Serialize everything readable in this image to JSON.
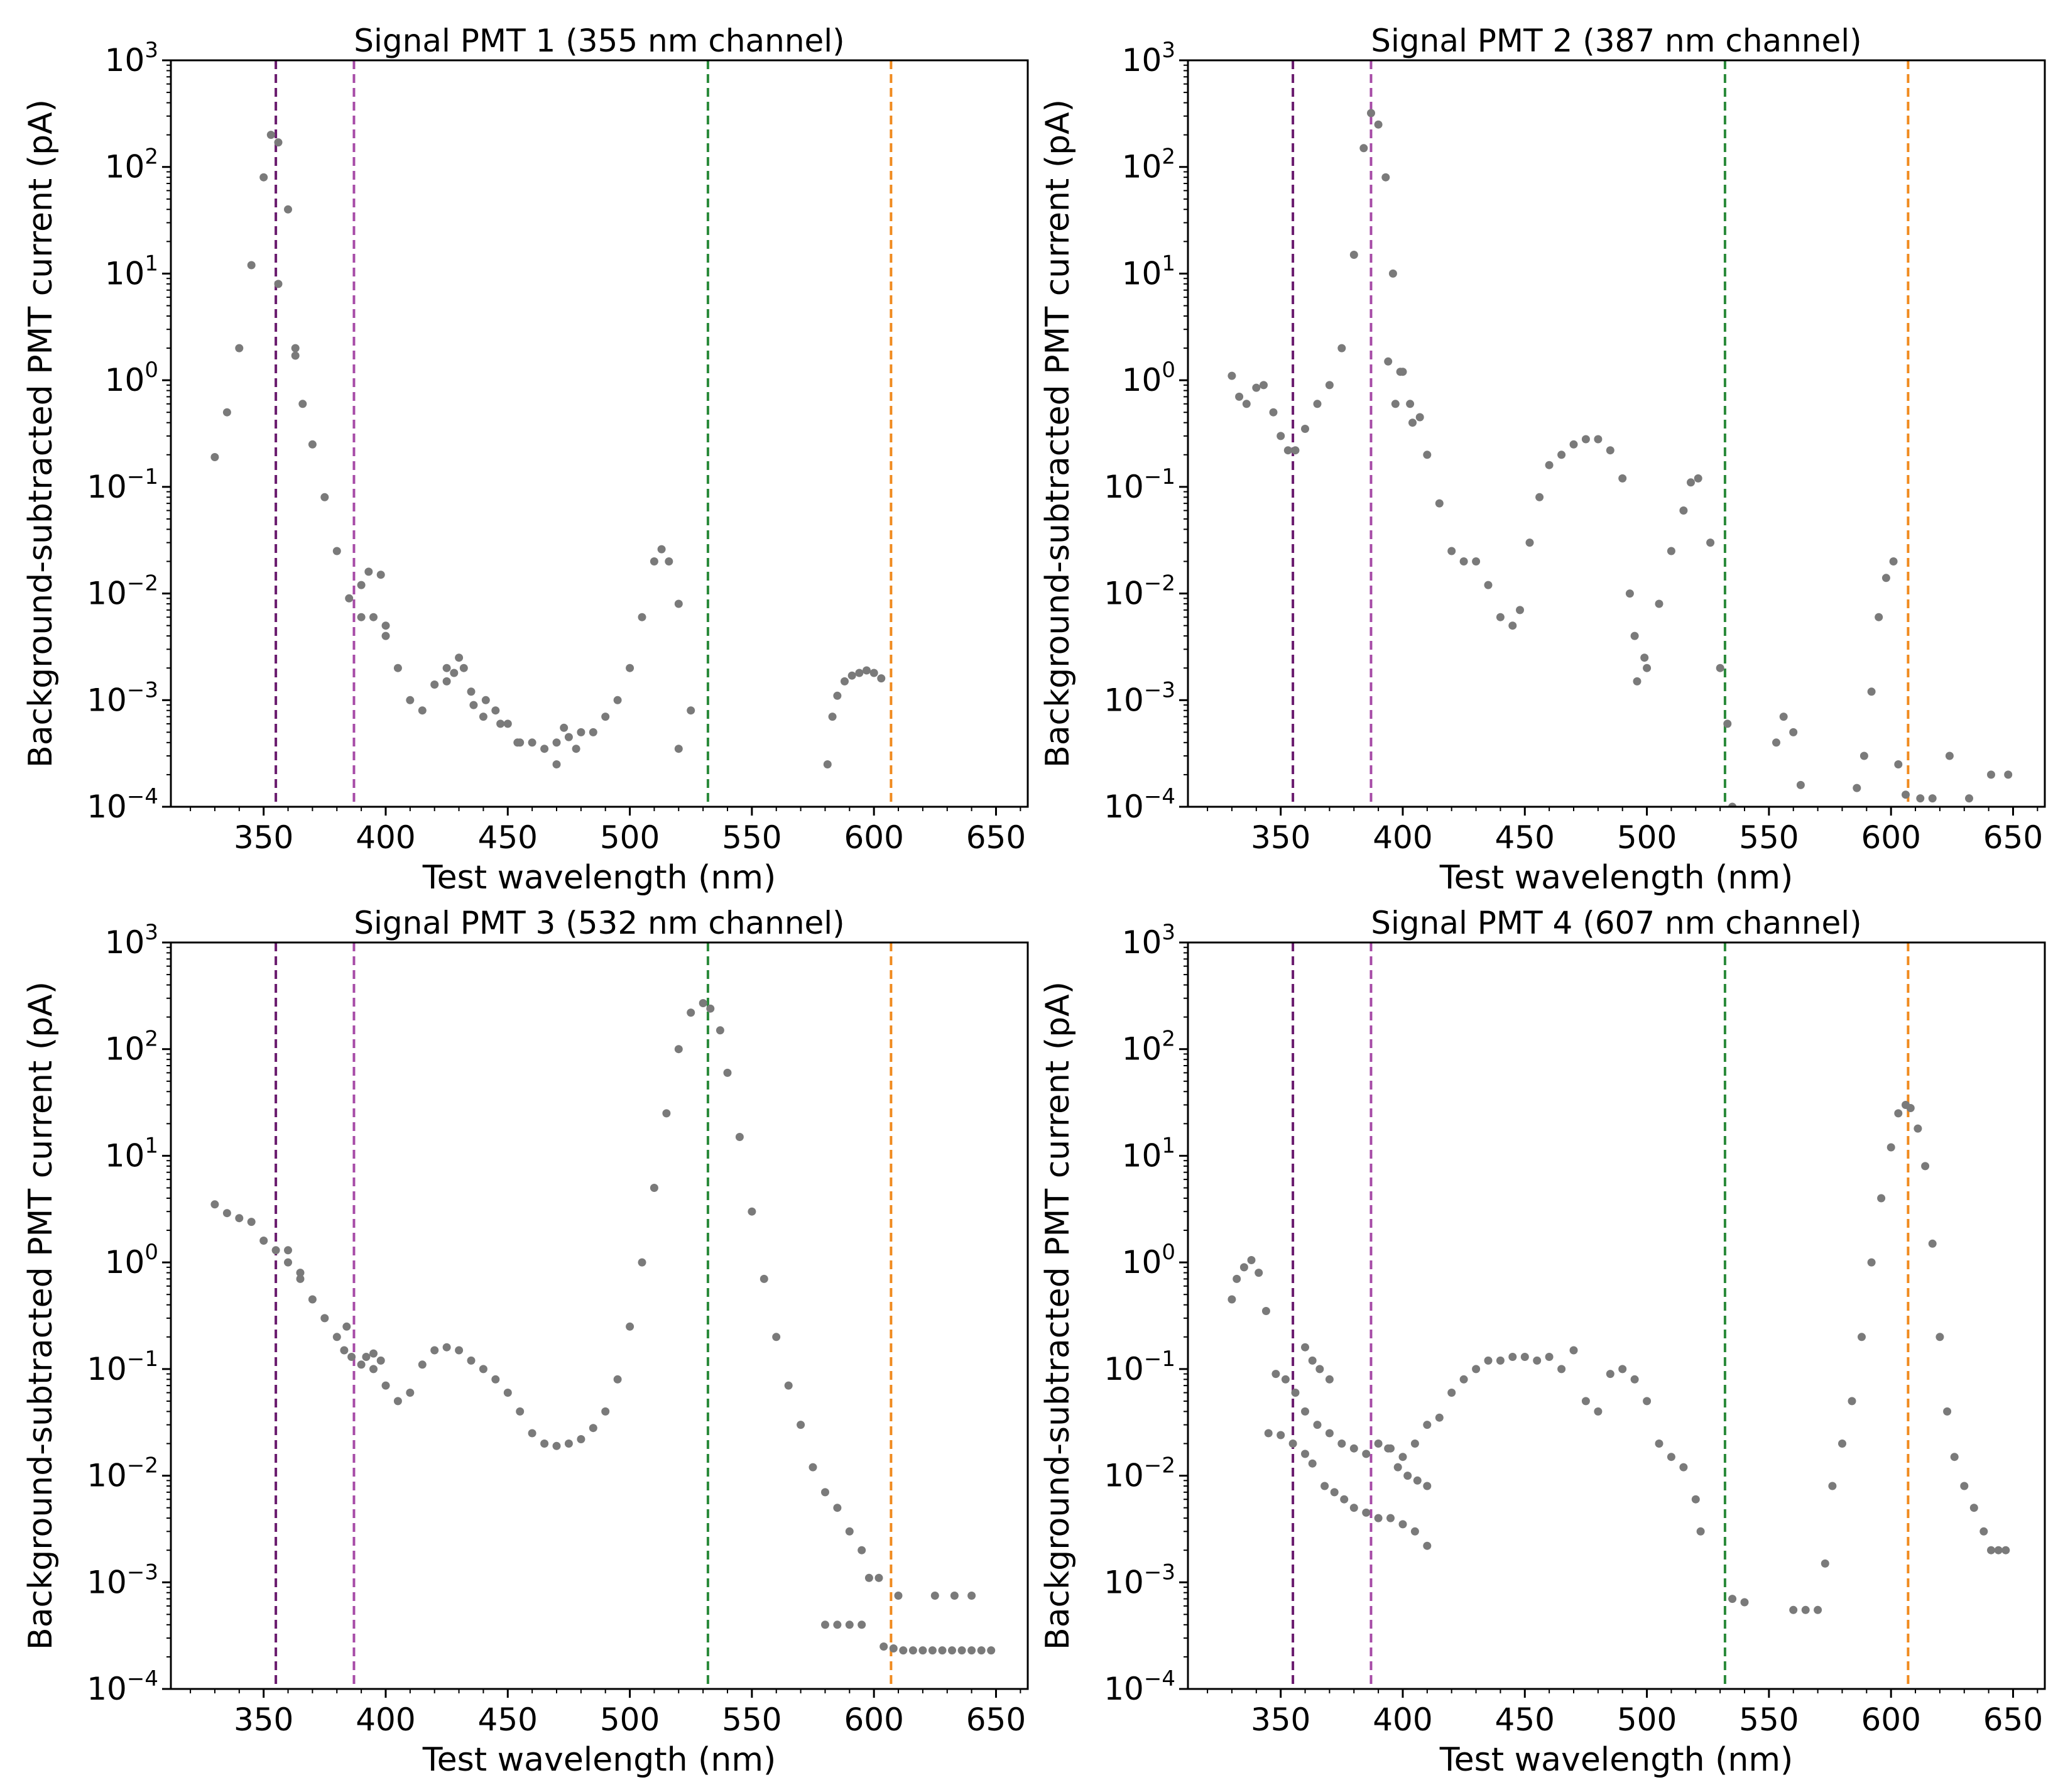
{
  "figure": {
    "xlabel": "Test wavelength (nm)",
    "ylabel": "Background-subtracted PMT current (pA)"
  },
  "colors": {
    "points": "#7a7a7a",
    "line_355": "#6a1b6e",
    "line_387": "#a64aa6",
    "line_532": "#2a8a3a",
    "line_607": "#f08a1e"
  },
  "chart_data": [
    {
      "type": "scatter",
      "title": "Signal PMT 1 (355 nm channel)",
      "xlabel": "Test wavelength (nm)",
      "ylabel": "Background-subtracted PMT current (pA)",
      "xlim": [
        312,
        663
      ],
      "ylim": [
        0.0001,
        1000
      ],
      "yscale": "log",
      "xticks": [
        350,
        400,
        450,
        500,
        550,
        600,
        650
      ],
      "yticks": [
        {
          "base": "10",
          "exp": "3",
          "value": 1000
        },
        {
          "base": "10",
          "exp": "2",
          "value": 100
        },
        {
          "base": "10",
          "exp": "1",
          "value": 10
        },
        {
          "base": "10",
          "exp": "0",
          "value": 1
        },
        {
          "base": "10",
          "exp": "−1",
          "value": 0.1
        },
        {
          "base": "10",
          "exp": "−2",
          "value": 0.01
        },
        {
          "base": "10",
          "exp": "−3",
          "value": 0.001
        },
        {
          "base": "10",
          "exp": "−4",
          "value": 0.0001
        }
      ],
      "vlines": [
        355,
        387,
        532,
        607
      ],
      "series": [
        {
          "name": "main",
          "x": [
            330,
            335,
            340,
            345,
            350,
            353,
            356,
            360,
            363,
            366,
            370,
            375,
            380,
            385,
            390,
            395,
            400,
            405,
            410,
            415,
            420,
            425,
            430,
            435,
            440,
            445,
            450,
            455,
            460,
            465,
            470,
            475,
            480,
            485,
            490,
            495,
            500,
            505,
            510,
            513,
            516,
            520,
            525
          ],
          "y": [
            0.19,
            0.5,
            2,
            12,
            80,
            200,
            170,
            40,
            2,
            0.6,
            0.25,
            0.08,
            0.025,
            0.009,
            0.006,
            0.006,
            0.005,
            0.002,
            0.001,
            0.0008,
            0.0014,
            0.002,
            0.0025,
            0.0012,
            0.0007,
            0.0008,
            0.0006,
            0.0004,
            0.0004,
            0.00035,
            0.0004,
            0.00045,
            0.0005,
            0.0005,
            0.0007,
            0.001,
            0.002,
            0.006,
            0.02,
            0.026,
            0.02,
            0.008,
            0.0008
          ]
        },
        {
          "name": "outliers",
          "x": [
            356,
            363,
            390,
            393,
            398,
            400,
            425,
            428,
            432,
            436,
            441,
            447,
            454,
            470,
            473,
            478,
            520
          ],
          "y": [
            8,
            1.7,
            0.012,
            0.016,
            0.015,
            0.004,
            0.0015,
            0.0018,
            0.002,
            0.0009,
            0.001,
            0.0006,
            0.0004,
            0.00025,
            0.00055,
            0.00035,
            0.00035
          ]
        },
        {
          "name": "tail",
          "x": [
            581,
            583,
            585,
            588,
            591,
            594,
            597,
            600,
            603
          ],
          "y": [
            0.00025,
            0.0007,
            0.0011,
            0.0015,
            0.0017,
            0.0018,
            0.0019,
            0.0018,
            0.0016
          ]
        }
      ]
    },
    {
      "type": "scatter",
      "title": "Signal PMT 2 (387 nm channel)",
      "xlabel": "Test wavelength (nm)",
      "ylabel": "Background-subtracted PMT current (pA)",
      "xlim": [
        312,
        663
      ],
      "ylim": [
        0.0001,
        1000
      ],
      "yscale": "log",
      "xticks": [
        350,
        400,
        450,
        500,
        550,
        600,
        650
      ],
      "yticks": [
        {
          "base": "10",
          "exp": "3",
          "value": 1000
        },
        {
          "base": "10",
          "exp": "2",
          "value": 100
        },
        {
          "base": "10",
          "exp": "1",
          "value": 10
        },
        {
          "base": "10",
          "exp": "0",
          "value": 1
        },
        {
          "base": "10",
          "exp": "−1",
          "value": 0.1
        },
        {
          "base": "10",
          "exp": "−2",
          "value": 0.01
        },
        {
          "base": "10",
          "exp": "−3",
          "value": 0.001
        },
        {
          "base": "10",
          "exp": "−4",
          "value": 0.0001
        }
      ],
      "vlines": [
        355,
        387,
        532,
        607
      ],
      "series": [
        {
          "name": "main",
          "x": [
            330,
            333,
            336,
            340,
            343,
            347,
            350,
            353,
            356,
            360,
            365,
            370,
            375,
            380,
            384,
            387,
            390,
            393,
            396,
            400,
            403,
            407,
            410,
            415,
            420,
            425,
            430,
            435,
            440,
            445,
            448,
            452,
            456,
            460,
            465,
            470,
            475,
            480,
            485,
            490,
            495,
            500,
            505,
            510,
            515,
            518,
            521,
            526,
            530,
            533
          ],
          "y": [
            1.1,
            0.7,
            0.6,
            0.85,
            0.9,
            0.5,
            0.3,
            0.22,
            0.22,
            0.35,
            0.6,
            0.9,
            2,
            15,
            150,
            320,
            250,
            80,
            10,
            1.2,
            0.6,
            0.45,
            0.2,
            0.07,
            0.025,
            0.02,
            0.02,
            0.012,
            0.006,
            0.005,
            0.007,
            0.03,
            0.08,
            0.16,
            0.2,
            0.25,
            0.28,
            0.28,
            0.22,
            0.12,
            0.004,
            0.002,
            0.008,
            0.025,
            0.06,
            0.11,
            0.12,
            0.03,
            0.002,
            0.0006
          ]
        },
        {
          "name": "outliers",
          "x": [
            394,
            397,
            399,
            404,
            493,
            496,
            499,
            535,
            553,
            556,
            560,
            563,
            586,
            589,
            592,
            595,
            598,
            601,
            603,
            606,
            612,
            617,
            624,
            632,
            641,
            648
          ],
          "y": [
            1.5,
            0.6,
            1.2,
            0.4,
            0.01,
            0.0015,
            0.0025,
            0.0001,
            0.0004,
            0.0007,
            0.0005,
            0.00016,
            0.00015,
            0.0003,
            0.0012,
            0.006,
            0.014,
            0.02,
            0.00025,
            0.00013,
            0.00012,
            0.00012,
            0.0003,
            0.00012,
            0.0002,
            0.0002
          ]
        }
      ]
    },
    {
      "type": "scatter",
      "title": "Signal PMT 3 (532 nm channel)",
      "xlabel": "Test wavelength (nm)",
      "ylabel": "Background-subtracted PMT current (pA)",
      "xlim": [
        312,
        663
      ],
      "ylim": [
        0.0001,
        1000
      ],
      "yscale": "log",
      "xticks": [
        350,
        400,
        450,
        500,
        550,
        600,
        650
      ],
      "yticks": [
        {
          "base": "10",
          "exp": "3",
          "value": 1000
        },
        {
          "base": "10",
          "exp": "2",
          "value": 100
        },
        {
          "base": "10",
          "exp": "1",
          "value": 10
        },
        {
          "base": "10",
          "exp": "0",
          "value": 1
        },
        {
          "base": "10",
          "exp": "−1",
          "value": 0.1
        },
        {
          "base": "10",
          "exp": "−2",
          "value": 0.01
        },
        {
          "base": "10",
          "exp": "−3",
          "value": 0.001
        },
        {
          "base": "10",
          "exp": "−4",
          "value": 0.0001
        }
      ],
      "vlines": [
        355,
        387,
        532,
        607
      ],
      "series": [
        {
          "name": "main",
          "x": [
            330,
            335,
            340,
            345,
            350,
            355,
            360,
            365,
            370,
            375,
            380,
            383,
            386,
            390,
            395,
            400,
            405,
            410,
            415,
            420,
            425,
            430,
            435,
            440,
            445,
            450,
            455,
            460,
            465,
            470,
            475,
            480,
            485,
            490,
            495,
            500,
            505,
            510,
            515,
            520,
            525,
            530,
            533,
            537,
            540,
            545,
            550,
            555,
            560,
            565,
            570,
            575,
            580,
            585,
            590,
            595
          ],
          "y": [
            3.5,
            2.9,
            2.6,
            2.4,
            1.6,
            1.3,
            1.0,
            0.7,
            0.45,
            0.3,
            0.2,
            0.15,
            0.13,
            0.11,
            0.1,
            0.07,
            0.05,
            0.06,
            0.11,
            0.15,
            0.16,
            0.15,
            0.12,
            0.1,
            0.08,
            0.06,
            0.04,
            0.025,
            0.02,
            0.019,
            0.02,
            0.022,
            0.028,
            0.04,
            0.08,
            0.25,
            1,
            5,
            25,
            100,
            220,
            270,
            240,
            150,
            60,
            15,
            3,
            0.7,
            0.2,
            0.07,
            0.03,
            0.012,
            0.007,
            0.005,
            0.003,
            0.002
          ]
        },
        {
          "name": "outliers",
          "x": [
            360,
            365,
            384,
            392,
            395,
            398,
            580,
            585,
            590,
            595,
            598,
            602
          ],
          "y": [
            1.3,
            0.8,
            0.25,
            0.13,
            0.14,
            0.12,
            0.0004,
            0.0004,
            0.0004,
            0.0004,
            0.0011,
            0.0011
          ]
        },
        {
          "name": "tail",
          "x": [
            604,
            608,
            612,
            616,
            620,
            624,
            628,
            632,
            636,
            640,
            644,
            648,
            610,
            625,
            633,
            640
          ],
          "y": [
            0.00025,
            0.00024,
            0.00023,
            0.00023,
            0.00023,
            0.00023,
            0.00023,
            0.00023,
            0.00023,
            0.00023,
            0.00023,
            0.00023,
            0.00075,
            0.00075,
            0.00075,
            0.00075
          ]
        }
      ]
    },
    {
      "type": "scatter",
      "title": "Signal PMT 4 (607 nm channel)",
      "xlabel": "Test wavelength (nm)",
      "ylabel": "Background-subtracted PMT current (pA)",
      "xlim": [
        312,
        663
      ],
      "ylim": [
        0.0001,
        1000
      ],
      "yscale": "log",
      "xticks": [
        350,
        400,
        450,
        500,
        550,
        600,
        650
      ],
      "yticks": [
        {
          "base": "10",
          "exp": "3",
          "value": 1000
        },
        {
          "base": "10",
          "exp": "2",
          "value": 100
        },
        {
          "base": "10",
          "exp": "1",
          "value": 10
        },
        {
          "base": "10",
          "exp": "0",
          "value": 1
        },
        {
          "base": "10",
          "exp": "−1",
          "value": 0.1
        },
        {
          "base": "10",
          "exp": "−2",
          "value": 0.01
        },
        {
          "base": "10",
          "exp": "−3",
          "value": 0.001
        },
        {
          "base": "10",
          "exp": "−4",
          "value": 0.0001
        }
      ],
      "vlines": [
        355,
        387,
        532,
        607
      ],
      "series": [
        {
          "name": "main",
          "x": [
            330,
            332,
            335,
            338,
            341,
            344,
            348,
            352,
            356,
            360,
            365,
            370,
            375,
            380,
            385,
            390,
            395,
            400,
            405,
            410,
            415,
            420,
            425,
            430,
            435,
            440,
            445,
            450,
            455,
            460,
            465,
            470,
            475,
            480,
            485,
            490,
            495,
            500,
            505,
            510,
            515,
            520,
            522
          ],
          "y": [
            0.45,
            0.7,
            0.9,
            1.05,
            0.8,
            0.35,
            0.09,
            0.08,
            0.06,
            0.04,
            0.03,
            0.025,
            0.02,
            0.018,
            0.016,
            0.02,
            0.018,
            0.015,
            0.02,
            0.03,
            0.035,
            0.06,
            0.08,
            0.1,
            0.12,
            0.12,
            0.13,
            0.13,
            0.12,
            0.13,
            0.1,
            0.15,
            0.05,
            0.04,
            0.09,
            0.1,
            0.08,
            0.05,
            0.02,
            0.015,
            0.012,
            0.006,
            0.003
          ]
        },
        {
          "name": "lower",
          "x": [
            345,
            350,
            355,
            360,
            363,
            368,
            372,
            376,
            380,
            385,
            390,
            395,
            400,
            405,
            410
          ],
          "y": [
            0.025,
            0.024,
            0.02,
            0.016,
            0.013,
            0.008,
            0.007,
            0.006,
            0.005,
            0.0045,
            0.004,
            0.004,
            0.0035,
            0.003,
            0.0022
          ]
        },
        {
          "name": "upper",
          "x": [
            360,
            363,
            366,
            370,
            394,
            398,
            402,
            406,
            410
          ],
          "y": [
            0.16,
            0.12,
            0.1,
            0.08,
            0.018,
            0.012,
            0.01,
            0.009,
            0.008
          ]
        },
        {
          "name": "peak",
          "x": [
            535,
            540,
            560,
            565,
            570,
            573,
            576,
            580,
            584,
            588,
            592,
            596,
            600,
            603,
            606,
            608,
            611,
            614,
            617,
            620,
            623,
            626,
            630,
            634,
            638,
            641,
            644,
            647
          ],
          "y": [
            0.0007,
            0.00065,
            0.00055,
            0.00055,
            0.00055,
            0.0015,
            0.008,
            0.02,
            0.05,
            0.2,
            1,
            4,
            12,
            25,
            30,
            28,
            18,
            8,
            1.5,
            0.2,
            0.04,
            0.015,
            0.008,
            0.005,
            0.003,
            0.002,
            0.002,
            0.002
          ]
        }
      ]
    }
  ]
}
